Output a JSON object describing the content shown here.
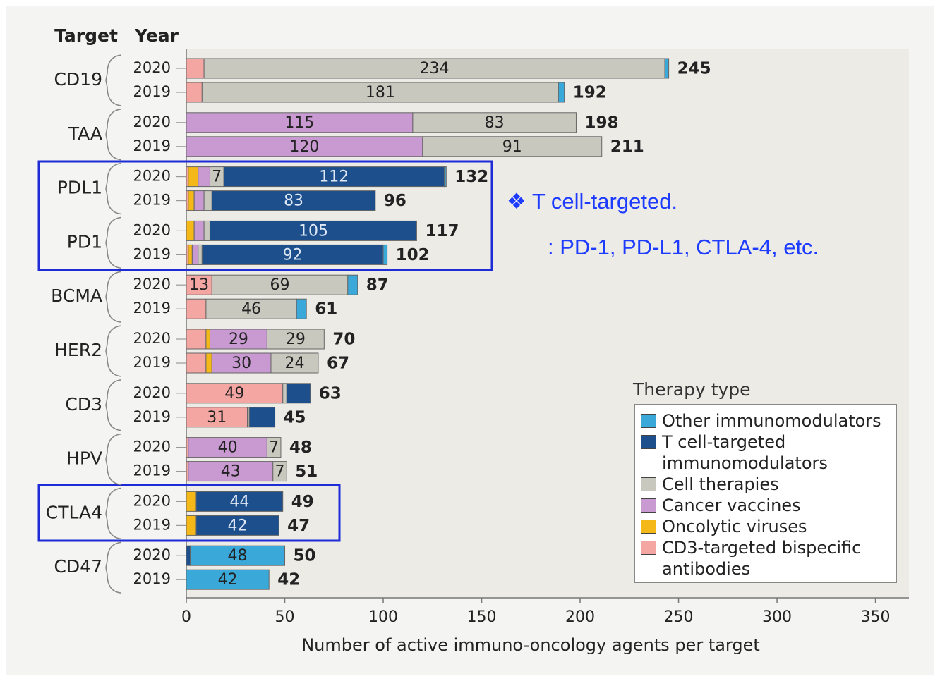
{
  "chart_data": {
    "type": "stacked_barh",
    "headers": [
      "Target",
      "Year"
    ],
    "groups": [
      "CD19",
      "TAA",
      "PDL1",
      "PD1",
      "BCMA",
      "HER2",
      "CD3",
      "HPV",
      "CTLA4",
      "CD47"
    ],
    "categories": [
      "2020",
      "2019",
      "2020",
      "2019",
      "2020",
      "2019",
      "2020",
      "2019",
      "2020",
      "2019",
      "2020",
      "2019",
      "2020",
      "2019",
      "2020",
      "2019",
      "2020",
      "2019",
      "2020",
      "2019"
    ],
    "series": [
      {
        "name": "CD3-targeted bispecific antibodies",
        "color": "#f4a6a3",
        "values": [
          9,
          8,
          0,
          0,
          1,
          1,
          0,
          1,
          13,
          10,
          10,
          10,
          49,
          31,
          1,
          1,
          0,
          0,
          0,
          0
        ],
        "value_labels": [
          null,
          null,
          null,
          null,
          null,
          null,
          null,
          null,
          "13",
          null,
          null,
          null,
          "49",
          "31",
          null,
          null,
          null,
          null,
          null,
          null
        ]
      },
      {
        "name": "Oncolytic viruses",
        "color": "#f5b819",
        "values": [
          0,
          0,
          0,
          0,
          5,
          3,
          4,
          2,
          0,
          0,
          2,
          3,
          0,
          0,
          0,
          0,
          5,
          5,
          0,
          0
        ],
        "value_labels": [
          null,
          null,
          null,
          null,
          null,
          null,
          null,
          null,
          null,
          null,
          null,
          null,
          null,
          null,
          null,
          null,
          null,
          null,
          null,
          null
        ]
      },
      {
        "name": "Cancer vaccines",
        "color": "#c99ad1",
        "values": [
          0,
          0,
          115,
          120,
          6,
          5,
          5,
          3,
          0,
          0,
          29,
          30,
          0,
          0,
          40,
          43,
          0,
          0,
          0,
          0
        ],
        "value_labels": [
          null,
          null,
          "115",
          "120",
          null,
          null,
          null,
          null,
          null,
          null,
          "29",
          "30",
          null,
          null,
          "40",
          "43",
          null,
          null,
          null,
          null
        ]
      },
      {
        "name": "Cell therapies",
        "color": "#c9c8bf",
        "values": [
          234,
          181,
          83,
          91,
          7,
          4,
          3,
          2,
          69,
          46,
          29,
          24,
          2,
          1,
          7,
          7,
          0,
          0,
          0,
          0
        ],
        "value_labels": [
          "234",
          "181",
          "83",
          "91",
          "7",
          null,
          null,
          null,
          "69",
          "46",
          "29",
          "24",
          null,
          null,
          "7",
          "7",
          null,
          null,
          null,
          null
        ]
      },
      {
        "name": "T cell-targeted immunomodulators",
        "color": "#1c4f8c",
        "values": [
          0,
          0,
          0,
          0,
          112,
          83,
          105,
          92,
          0,
          0,
          0,
          0,
          12,
          13,
          0,
          0,
          44,
          42,
          2,
          0
        ],
        "value_labels": [
          null,
          null,
          null,
          null,
          "112",
          "83",
          "105",
          "92",
          null,
          null,
          null,
          null,
          null,
          null,
          null,
          null,
          "44",
          "42",
          null,
          null
        ]
      },
      {
        "name": "Other immunomodulators",
        "color": "#3aa9d9",
        "values": [
          2,
          3,
          0,
          0,
          1,
          0,
          0,
          2,
          5,
          5,
          0,
          0,
          0,
          0,
          0,
          0,
          0,
          0,
          48,
          42
        ],
        "value_labels": [
          null,
          null,
          null,
          null,
          null,
          null,
          null,
          null,
          null,
          null,
          null,
          null,
          null,
          null,
          null,
          null,
          null,
          null,
          "48",
          "42"
        ]
      }
    ],
    "totals": [
      245,
      192,
      198,
      211,
      132,
      96,
      117,
      102,
      87,
      61,
      70,
      67,
      63,
      45,
      48,
      51,
      49,
      47,
      50,
      42
    ],
    "xlim": [
      0,
      367
    ],
    "xticks": [
      0,
      50,
      100,
      150,
      200,
      250,
      300,
      350
    ],
    "xlabel": "Number of active immuno-oncology agents per target",
    "legend_title": "Therapy type",
    "annotations": [
      "❖  T cell-targeted.",
      ": PD-1, PD-L1, CTLA-4, etc."
    ]
  }
}
